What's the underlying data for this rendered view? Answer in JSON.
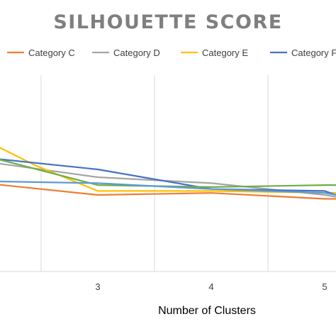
{
  "chart_data": {
    "type": "line",
    "title": "SILHOUETTE SCORE",
    "xlabel": "Number of Clusters",
    "ylabel": "",
    "x_ticks": [
      3,
      4,
      5
    ],
    "xlim": [
      2,
      5.1
    ],
    "ylim": [
      0,
      1
    ],
    "grid": "vertical",
    "legend_position": "top",
    "series": [
      {
        "name": "Category C",
        "color": "#ED7D31",
        "x": [
          2,
          3,
          4,
          5,
          5.1
        ],
        "y": [
          0.45,
          0.39,
          0.4,
          0.37,
          0.37
        ]
      },
      {
        "name": "Category D",
        "color": "#A5A5A5",
        "x": [
          2,
          3,
          4,
          5,
          5.1
        ],
        "y": [
          0.56,
          0.48,
          0.45,
          0.39,
          0.38
        ]
      },
      {
        "name": "Category E",
        "color": "#FFC000",
        "x": [
          2,
          2.45,
          3,
          4,
          5.1
        ],
        "y": [
          0.67,
          0.54,
          0.41,
          0.41,
          0.4
        ]
      },
      {
        "name": "Category F",
        "color": "#4472C4",
        "x": [
          2,
          3,
          4,
          5,
          5.1
        ],
        "y": [
          0.58,
          0.52,
          0.42,
          0.41,
          0.39
        ]
      },
      {
        "name": "",
        "color": "#70AD47",
        "x": [
          2,
          3,
          4,
          5,
          5.1
        ],
        "y": [
          0.59,
          0.44,
          0.43,
          0.44,
          0.44
        ]
      },
      {
        "name": "",
        "color": "#5B9BD5",
        "x": [
          2,
          3,
          4,
          5,
          5.1
        ],
        "y": [
          0.46,
          0.45,
          0.42,
          0.4,
          0.39
        ]
      }
    ]
  }
}
